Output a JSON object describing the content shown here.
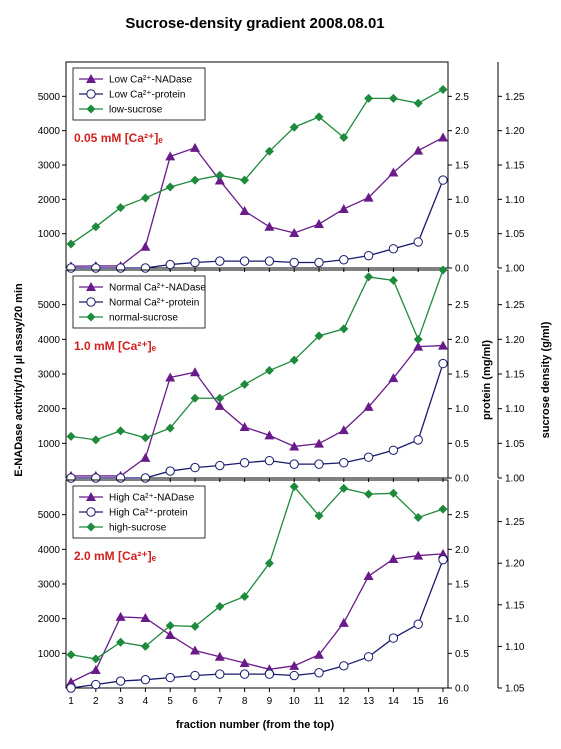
{
  "title": "Sucrose-density gradient 2008.08.01",
  "xlabel": "fraction number (from the top)",
  "ylabel_left": "E-NADase activity/10 µl assay/20 min",
  "ylabel_right1": "protein (mg/ml)",
  "ylabel_right2": "sucrose density (g/ml)",
  "colors": {
    "nadase": "#6a1b8a",
    "protein": "#1a1a6e",
    "sucrose": "#1e8a3c",
    "condition": "#d42020"
  },
  "chart_data": [
    {
      "type": "line",
      "condition_label": "0.05 mM [Ca²⁺]ₑ",
      "x": [
        1,
        2,
        3,
        4,
        5,
        6,
        7,
        8,
        9,
        10,
        11,
        12,
        13,
        14,
        15,
        16
      ],
      "ylim_left": [
        0,
        6000
      ],
      "yticks_left": [
        1000,
        2000,
        3000,
        4000,
        5000
      ],
      "ylim_protein": [
        0,
        3
      ],
      "yticks_protein": [
        0.0,
        0.5,
        1.0,
        1.5,
        2.0,
        2.5
      ],
      "ylim_sucrose": [
        1.0,
        1.3
      ],
      "yticks_sucrose": [
        1.0,
        1.05,
        1.1,
        1.15,
        1.2,
        1.25
      ],
      "series": [
        {
          "name": "Low Ca²⁺-NADase",
          "axis": "left",
          "marker": "triangle",
          "values": [
            50,
            60,
            60,
            620,
            3250,
            3500,
            2550,
            1660,
            1200,
            1020,
            1280,
            1720,
            2050,
            2780,
            3420,
            3800
          ]
        },
        {
          "name": "Low Ca²⁺-protein",
          "axis": "protein",
          "marker": "circle-open",
          "values": [
            0.0,
            0.0,
            0.0,
            0.0,
            0.05,
            0.08,
            0.1,
            0.1,
            0.1,
            0.08,
            0.08,
            0.12,
            0.18,
            0.28,
            0.38,
            1.28
          ]
        },
        {
          "name": "low-sucrose",
          "axis": "sucrose",
          "marker": "diamond",
          "values": [
            1.035,
            1.06,
            1.088,
            1.102,
            1.118,
            1.128,
            1.135,
            1.128,
            1.17,
            1.205,
            1.22,
            1.19,
            1.247,
            1.247,
            1.24,
            1.26
          ]
        }
      ]
    },
    {
      "type": "line",
      "condition_label": "1.0 mM [Ca²⁺]ₑ",
      "x": [
        1,
        2,
        3,
        4,
        5,
        6,
        7,
        8,
        9,
        10,
        11,
        12,
        13,
        14,
        15,
        16
      ],
      "ylim_left": [
        0,
        6000
      ],
      "yticks_left": [
        1000,
        2000,
        3000,
        4000,
        5000
      ],
      "ylim_protein": [
        0,
        3
      ],
      "yticks_protein": [
        0.0,
        0.5,
        1.0,
        1.5,
        2.0,
        2.5
      ],
      "ylim_sucrose": [
        1.0,
        1.3
      ],
      "yticks_sucrose": [
        1.0,
        1.05,
        1.1,
        1.15,
        1.2,
        1.25
      ],
      "series": [
        {
          "name": "Normal Ca²⁺-NADase",
          "axis": "left",
          "marker": "triangle",
          "values": [
            60,
            60,
            60,
            580,
            2900,
            3050,
            2080,
            1470,
            1230,
            910,
            990,
            1380,
            2050,
            2880,
            3790,
            3820
          ]
        },
        {
          "name": "Normal Ca²⁺-protein",
          "axis": "protein",
          "marker": "circle-open",
          "values": [
            0.0,
            0.0,
            0.0,
            0.0,
            0.1,
            0.15,
            0.18,
            0.22,
            0.25,
            0.2,
            0.2,
            0.22,
            0.3,
            0.4,
            0.55,
            1.65
          ]
        },
        {
          "name": "normal-sucrose",
          "axis": "sucrose",
          "marker": "diamond",
          "values": [
            1.06,
            1.055,
            1.068,
            1.058,
            1.072,
            1.115,
            1.115,
            1.135,
            1.155,
            1.17,
            1.205,
            1.215,
            1.29,
            1.285,
            1.2,
            1.3
          ]
        }
      ]
    },
    {
      "type": "line",
      "condition_label": "2.0 mM [Ca²⁺]ₑ",
      "x": [
        1,
        2,
        3,
        4,
        5,
        6,
        7,
        8,
        9,
        10,
        11,
        12,
        13,
        14,
        15,
        16
      ],
      "ylim_left": [
        0,
        6000
      ],
      "yticks_left": [
        1000,
        2000,
        3000,
        4000,
        5000
      ],
      "ylim_protein": [
        0,
        3
      ],
      "yticks_protein": [
        0.0,
        0.5,
        1.0,
        1.5,
        2.0,
        2.5
      ],
      "ylim_sucrose": [
        1.05,
        1.3
      ],
      "yticks_sucrose": [
        1.05,
        1.1,
        1.15,
        1.2,
        1.25
      ],
      "series": [
        {
          "name": "High Ca²⁺-NADase",
          "axis": "left",
          "marker": "triangle",
          "values": [
            170,
            520,
            2050,
            2020,
            1530,
            1080,
            900,
            720,
            540,
            640,
            960,
            1880,
            3230,
            3720,
            3820,
            3870
          ]
        },
        {
          "name": "High Ca²⁺-protein",
          "axis": "protein",
          "marker": "circle-open",
          "values": [
            0.0,
            0.05,
            0.1,
            0.12,
            0.15,
            0.18,
            0.2,
            0.2,
            0.2,
            0.18,
            0.22,
            0.32,
            0.45,
            0.72,
            0.92,
            1.85
          ]
        },
        {
          "name": "high-sucrose",
          "axis": "sucrose",
          "marker": "diamond",
          "values": [
            1.09,
            1.085,
            1.105,
            1.1,
            1.125,
            1.124,
            1.148,
            1.16,
            1.2,
            1.292,
            1.257,
            1.29,
            1.283,
            1.284,
            1.255,
            1.265
          ]
        }
      ]
    }
  ]
}
